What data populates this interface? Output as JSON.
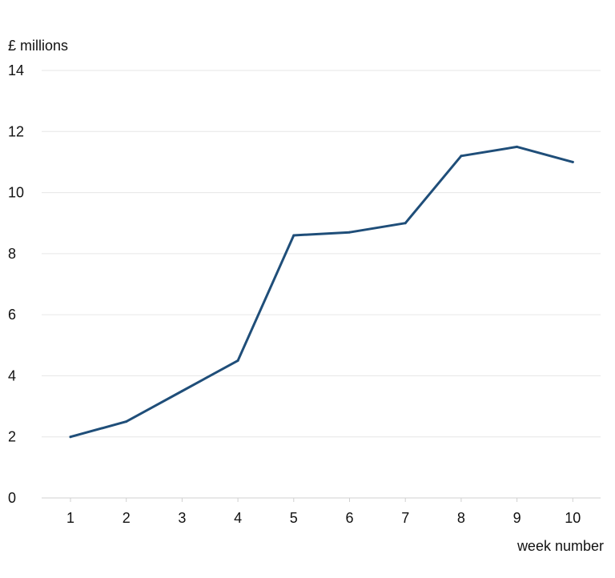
{
  "chart_data": {
    "type": "line",
    "ylabel": "£ millions",
    "xlabel": "week number",
    "x": [
      1,
      2,
      3,
      4,
      5,
      6,
      7,
      8,
      9,
      10
    ],
    "series": [
      {
        "values": [
          2.0,
          2.5,
          3.5,
          4.5,
          8.6,
          8.7,
          9.0,
          11.2,
          11.5,
          11.0
        ]
      }
    ],
    "ylim": [
      0,
      14
    ],
    "yticks": [
      0,
      2,
      4,
      6,
      8,
      10,
      12,
      14
    ],
    "xticks": [
      "1",
      "2",
      "3",
      "4",
      "5",
      "6",
      "7",
      "8",
      "9",
      "10"
    ],
    "grid": true,
    "line_color": "#1f4e79"
  }
}
